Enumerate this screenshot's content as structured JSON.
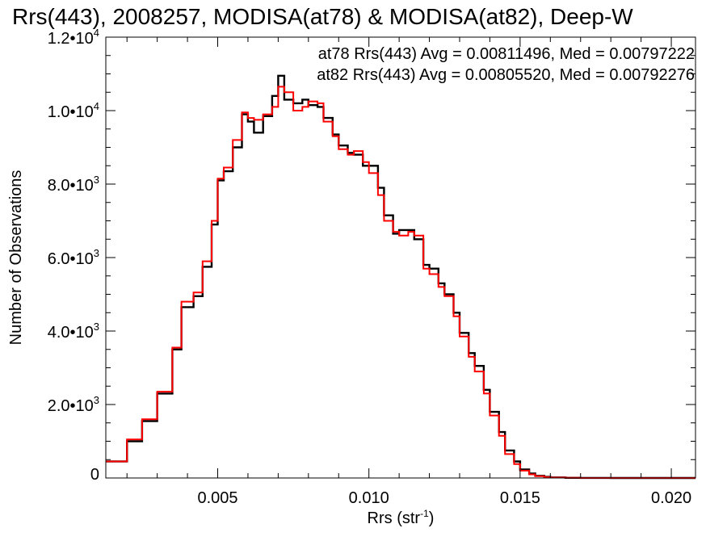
{
  "chart_data": {
    "type": "line",
    "title": "Rrs(443), 2008257, MODISA(at78) & MODISA(at82), Deep-W",
    "xlabel": "Rrs (str",
    "xlabel_sup": "-1",
    "xlabel_close": ")",
    "ylabel": "Number of Observations",
    "xlim": [
      0.0013,
      0.0208
    ],
    "ylim": [
      0,
      12000
    ],
    "x_ticks": [
      {
        "value": 0.005,
        "label": "0.005"
      },
      {
        "value": 0.01,
        "label": "0.010"
      },
      {
        "value": 0.015,
        "label": "0.015"
      },
      {
        "value": 0.02,
        "label": "0.020"
      }
    ],
    "y_ticks": [
      {
        "value": 0,
        "label": "0",
        "exp": ""
      },
      {
        "value": 2000,
        "label": "2.0•10",
        "exp": "3"
      },
      {
        "value": 4000,
        "label": "4.0•10",
        "exp": "3"
      },
      {
        "value": 6000,
        "label": "6.0•10",
        "exp": "3"
      },
      {
        "value": 8000,
        "label": "8.0•10",
        "exp": "3"
      },
      {
        "value": 10000,
        "label": "1.0•10",
        "exp": "4"
      },
      {
        "value": 12000,
        "label": "1.2•10",
        "exp": "4"
      }
    ],
    "annotations": [
      {
        "text": "at78 Rrs(443) Avg = 0.00811496, Med = 0.00797222",
        "color": "#000000"
      },
      {
        "text": "at82 Rrs(443) Avg = 0.00805520, Med = 0.00792276",
        "color": "#ff0000"
      }
    ],
    "series": [
      {
        "color": "#000000",
        "x": [
          0.0013,
          0.002,
          0.0025,
          0.003,
          0.0035,
          0.0038,
          0.0042,
          0.0045,
          0.0048,
          0.005,
          0.0052,
          0.0055,
          0.0058,
          0.006,
          0.0062,
          0.0065,
          0.0068,
          0.007,
          0.0072,
          0.0075,
          0.0078,
          0.008,
          0.0083,
          0.0085,
          0.0088,
          0.009,
          0.0093,
          0.0095,
          0.0098,
          0.01,
          0.0103,
          0.0105,
          0.0108,
          0.011,
          0.0113,
          0.0115,
          0.0118,
          0.012,
          0.0123,
          0.0125,
          0.0128,
          0.013,
          0.0133,
          0.0135,
          0.0138,
          0.014,
          0.0143,
          0.0145,
          0.0148,
          0.015,
          0.0153,
          0.0155,
          0.0158,
          0.016,
          0.0165,
          0.017,
          0.018,
          0.019,
          0.02,
          0.0208
        ],
        "y": [
          450,
          1000,
          1550,
          2300,
          3500,
          4650,
          4950,
          5750,
          6900,
          8100,
          8350,
          9000,
          9900,
          9700,
          9400,
          9850,
          10400,
          10950,
          10300,
          10200,
          10300,
          10150,
          10100,
          9800,
          9350,
          9050,
          8850,
          8800,
          8500,
          8500,
          7900,
          7150,
          6650,
          6750,
          6750,
          6500,
          5800,
          5700,
          5300,
          5000,
          4500,
          3950,
          3400,
          3050,
          2400,
          1800,
          1250,
          750,
          450,
          230,
          120,
          60,
          30,
          15,
          5,
          2,
          0,
          0,
          0,
          0
        ]
      },
      {
        "color": "#ff0000",
        "x": [
          0.0013,
          0.002,
          0.0025,
          0.003,
          0.0035,
          0.0038,
          0.0042,
          0.0045,
          0.0048,
          0.005,
          0.0052,
          0.0055,
          0.0058,
          0.006,
          0.0062,
          0.0065,
          0.0068,
          0.007,
          0.0072,
          0.0075,
          0.0078,
          0.008,
          0.0083,
          0.0085,
          0.0088,
          0.009,
          0.0093,
          0.0095,
          0.0098,
          0.01,
          0.0103,
          0.0105,
          0.0108,
          0.011,
          0.0113,
          0.0115,
          0.0118,
          0.012,
          0.0123,
          0.0125,
          0.0128,
          0.013,
          0.0133,
          0.0135,
          0.0138,
          0.014,
          0.0143,
          0.0145,
          0.0148,
          0.015,
          0.0153,
          0.0155,
          0.0158,
          0.016,
          0.0165,
          0.017,
          0.018,
          0.019,
          0.02,
          0.0208
        ],
        "y": [
          450,
          1050,
          1600,
          2350,
          3550,
          4800,
          5050,
          5900,
          7000,
          8150,
          8450,
          9200,
          9950,
          9800,
          9750,
          9900,
          10100,
          10650,
          10500,
          10000,
          10100,
          10250,
          10200,
          9700,
          9300,
          8950,
          8800,
          8900,
          8600,
          8300,
          7700,
          7000,
          6700,
          6600,
          6700,
          6600,
          5700,
          5550,
          5200,
          4950,
          4400,
          3850,
          3300,
          2900,
          2300,
          1700,
          1150,
          650,
          380,
          200,
          100,
          50,
          25,
          10,
          4,
          1,
          0,
          0,
          0,
          0
        ]
      }
    ]
  }
}
